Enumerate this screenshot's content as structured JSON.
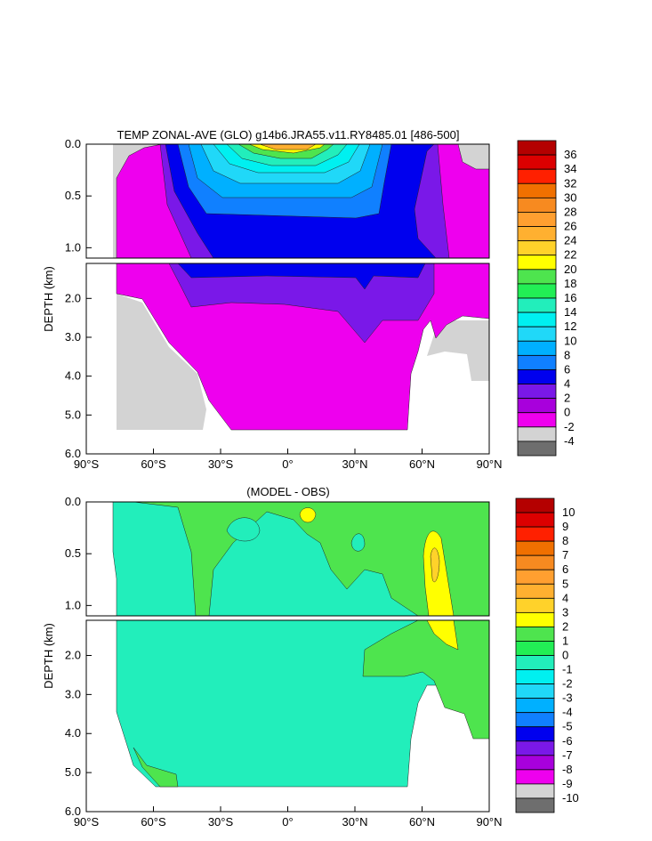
{
  "chart_data": [
    {
      "type": "heatmap",
      "title": "TEMP ZONAL-AVE (GLO) g14b6.JRA55.v11.RY8485.01 [486-500]",
      "xlabel": "",
      "ylabel": "DEPTH (km)",
      "xlim": [
        -90,
        90
      ],
      "ylim_upper": [
        0.0,
        1.1
      ],
      "ylim_lower": [
        1.1,
        6.0
      ],
      "x_ticks": [
        "90°S",
        "60°S",
        "30°S",
        "0°",
        "30°N",
        "60°N",
        "90°N"
      ],
      "y_ticks_upper": [
        "0.0",
        "0.5",
        "1.0"
      ],
      "y_ticks_lower": [
        "2.0",
        "3.0",
        "4.0",
        "5.0",
        "6.0"
      ],
      "colorbar_labels": [
        "36",
        "34",
        "32",
        "30",
        "28",
        "26",
        "24",
        "22",
        "20",
        "18",
        "16",
        "14",
        "12",
        "10",
        "8",
        "6",
        "4",
        "2",
        "0",
        "-2",
        "-4"
      ],
      "colorbar_colors": [
        "#b40000",
        "#dc0000",
        "#ff2000",
        "#f07000",
        "#f78a20",
        "#ff9f30",
        "#ffb030",
        "#ffd22a",
        "#ffff00",
        "#4ee44e",
        "#22ee55",
        "#22eebb",
        "#00f0f0",
        "#20d8f8",
        "#00b0ff",
        "#1080ff",
        "#0000ee",
        "#7a18e8",
        "#a800dc",
        "#ee00ee",
        "#d3d3d3",
        "#6e6e6e"
      ]
    },
    {
      "type": "heatmap",
      "title": "(MODEL - OBS)",
      "xlabel": "",
      "ylabel": "DEPTH (km)",
      "xlim": [
        -90,
        90
      ],
      "ylim_upper": [
        0.0,
        1.1
      ],
      "ylim_lower": [
        1.1,
        6.0
      ],
      "x_ticks": [
        "90°S",
        "60°S",
        "30°S",
        "0°",
        "30°N",
        "60°N",
        "90°N"
      ],
      "y_ticks_upper": [
        "0.0",
        "0.5",
        "1.0"
      ],
      "y_ticks_lower": [
        "2.0",
        "3.0",
        "4.0",
        "5.0",
        "6.0"
      ],
      "colorbar_labels": [
        "10",
        "9",
        "8",
        "7",
        "6",
        "5",
        "4",
        "3",
        "2",
        "1",
        "0",
        "-1",
        "-2",
        "-3",
        "-4",
        "-5",
        "-6",
        "-7",
        "-8",
        "-9",
        "-10"
      ],
      "colorbar_colors": [
        "#b40000",
        "#dc0000",
        "#ff2000",
        "#f07000",
        "#f78a20",
        "#ff9f30",
        "#ffb030",
        "#ffd22a",
        "#ffff00",
        "#4ee44e",
        "#22ee55",
        "#22eebb",
        "#00f0f0",
        "#20d8f8",
        "#00b0ff",
        "#1080ff",
        "#0000ee",
        "#7a18e8",
        "#a800dc",
        "#ee00ee",
        "#d3d3d3",
        "#6e6e6e"
      ]
    }
  ]
}
